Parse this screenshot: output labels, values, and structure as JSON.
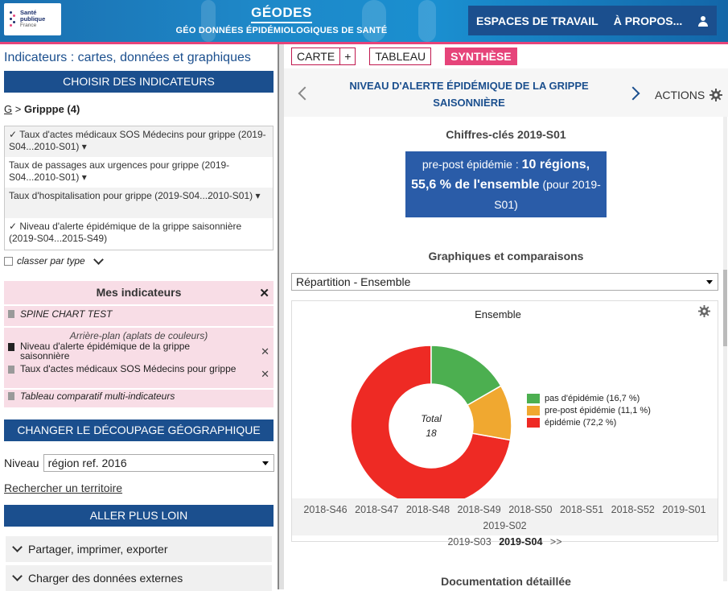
{
  "header": {
    "logo_text": [
      "Santé",
      "publique",
      "France"
    ],
    "app_title": "GÉODES",
    "app_subtitle": "GÉO DONNÉES ÉPIDÉMIOLOGIQUES DE SANTÉ",
    "nav_workspaces": "ESPACES DE TRAVAIL",
    "nav_about": "À PROPOS...",
    "accent_color": "#e6447a",
    "brand_blue": "#1b4f8e"
  },
  "left": {
    "title": "Indicateurs : cartes, données et graphiques",
    "choose_btn": "CHOISIR DES INDICATEURS",
    "crumb_root": "G",
    "crumb_sep": ">",
    "crumb_current": "Gripppe (4)",
    "indicators": [
      {
        "label": "✓ Taux d'actes médicaux SOS Médecins pour grippe (2019-S04...2010-S01) ▾"
      },
      {
        "label": "Taux de passages aux urgences pour grippe (2019-S04...2010-S01) ▾"
      },
      {
        "label": "Taux d'hospitalisation pour grippe (2019-S04...2010-S01) ▾"
      },
      {
        "label": "✓ Niveau d'alerte épidémique de la grippe saisonnière (2019-S04...2015-S49)"
      }
    ],
    "classer": "classer par type",
    "mes_title": "Mes indicateurs",
    "mes_items": [
      "SPINE CHART TEST",
      "Arrière-plan (aplats de couleurs)",
      "Niveau d'alerte épidémique de la grippe saisonnière",
      "Taux d'actes médicaux SOS Médecins pour grippe",
      "Tableau comparatif multi-indicateurs"
    ],
    "geo_btn": "CHANGER LE DÉCOUPAGE GÉOGRAPHIQUE",
    "niveau_label": "Niveau",
    "niveau_value": "région ref. 2016",
    "search_link": "Rechercher un territoire",
    "further_btn": "ALLER PLUS LOIN",
    "acc_share": "Partager, imprimer, exporter",
    "acc_load": "Charger des données externes"
  },
  "right": {
    "tab_carte": "CARTE",
    "tab_plus": "+",
    "tab_tableau": "TABLEAU",
    "tab_synthese": "SYNTHÈSE",
    "indicator_title": "NIVEAU D'ALERTE ÉPIDÉMIQUE DE LA GRIPPE SAISONNIÈRE",
    "actions": "ACTIONS",
    "keyfig_title": "Chiffres-clés 2019-S01",
    "keyfig_prefix": "pre-post épidémie : ",
    "keyfig_bold1": "10 régions,",
    "keyfig_bold2": "55,6 % de l'ensemble",
    "keyfig_suffix": " (pour 2019-S01)",
    "graphs_title": "Graphiques et comparaisons",
    "rep_select": "Répartition - Ensemble",
    "chart_title": "Ensemble",
    "total_label": "Total",
    "total_value": "18",
    "weeks": [
      "2018-S46",
      "2018-S47",
      "2018-S48",
      "2018-S49",
      "2018-S50",
      "2018-S51",
      "2018-S52",
      "2019-S01",
      "2019-S02",
      "2019-S03",
      "2019-S04",
      ">>"
    ],
    "current_week": "2019-S04",
    "doc_title": "Documentation détaillée"
  },
  "chart_data": {
    "type": "pie",
    "title": "Ensemble",
    "labels": [
      "pas d'épidémie (16,7 %)",
      "pre-post épidémie (11,1 %)",
      "épidémie (72,2 %)"
    ],
    "values": [
      16.7,
      11.1,
      72.2
    ],
    "colors": [
      "#4caf50",
      "#f0a830",
      "#ee2a24"
    ],
    "center_text": [
      "Total",
      "18"
    ],
    "legend_position": "right"
  }
}
